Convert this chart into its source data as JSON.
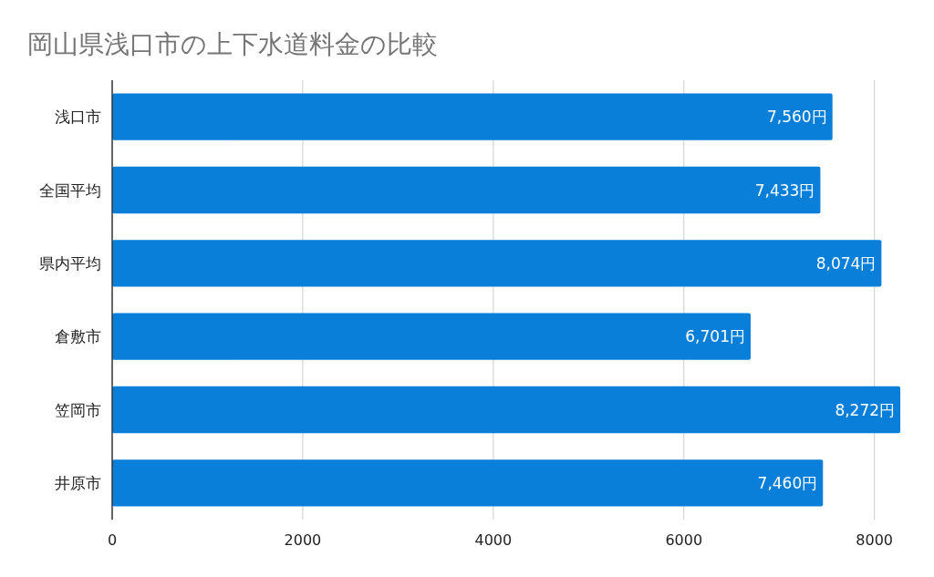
{
  "chart_data": {
    "type": "bar",
    "orientation": "horizontal",
    "title": "岡山県浅口市の上下水道料金の比較",
    "categories": [
      "浅口市",
      "全国平均",
      "県内平均",
      "倉敷市",
      "笠岡市",
      "井原市"
    ],
    "values": [
      7560,
      7433,
      8074,
      6701,
      8272,
      7460
    ],
    "value_labels": [
      "7,560円",
      "7,433円",
      "8,074円",
      "6,701円",
      "8,272円",
      "7,460円"
    ],
    "color": "#0a7fd9",
    "xlim": [
      0,
      8300
    ],
    "xticks": [
      0,
      2000,
      4000,
      6000,
      8000
    ],
    "grid": "x"
  }
}
